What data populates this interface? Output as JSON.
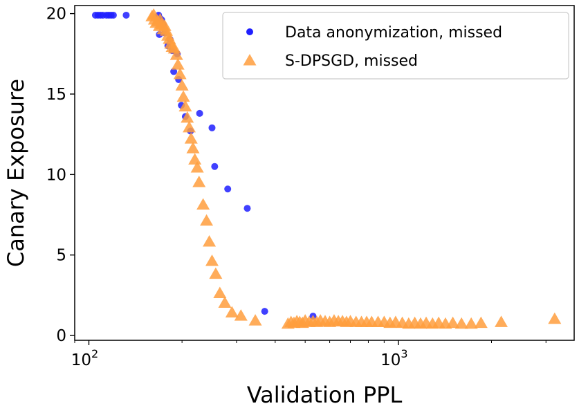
{
  "chart_data": {
    "type": "scatter",
    "title": "",
    "xlabel": "Validation PPL",
    "ylabel": "Canary Exposure",
    "xscale": "log",
    "xlim": [
      90,
      3700
    ],
    "ylim": [
      -0.3,
      20.5
    ],
    "xticks": [
      {
        "value": 100,
        "base": "10",
        "exp": "2"
      },
      {
        "value": 1000,
        "base": "10",
        "exp": "3"
      }
    ],
    "yticks": [
      0,
      5,
      10,
      15,
      20
    ],
    "grid": false,
    "legend_position": "top-right",
    "colors": {
      "anonymization": "#1f1fff",
      "dpsgd": "#ff9e3d"
    },
    "series": [
      {
        "name": "Data anonymization, missed",
        "marker": "circle",
        "color": "#1f1fff",
        "points": [
          [
            105,
            19.9
          ],
          [
            107,
            19.9
          ],
          [
            109,
            19.9
          ],
          [
            111,
            19.9
          ],
          [
            114,
            19.9
          ],
          [
            116,
            19.9
          ],
          [
            118,
            19.9
          ],
          [
            120,
            19.9
          ],
          [
            132,
            19.9
          ],
          [
            168,
            19.9
          ],
          [
            170,
            19.7
          ],
          [
            172,
            19.6
          ],
          [
            174,
            19.3
          ],
          [
            169,
            18.7
          ],
          [
            176,
            18.8
          ],
          [
            183,
            18.4
          ],
          [
            180,
            18.0
          ],
          [
            186,
            17.7
          ],
          [
            193,
            17.5
          ],
          [
            188,
            16.4
          ],
          [
            195,
            15.9
          ],
          [
            199,
            14.3
          ],
          [
            205,
            13.6
          ],
          [
            213,
            12.7
          ],
          [
            228,
            13.8
          ],
          [
            250,
            12.9
          ],
          [
            255,
            10.5
          ],
          [
            281,
            9.1
          ],
          [
            325,
            7.9
          ],
          [
            370,
            1.5
          ],
          [
            530,
            1.2
          ]
        ]
      },
      {
        "name": "S-DPSGD, missed",
        "marker": "triangle",
        "color": "#ff9e3d",
        "points": [
          [
            160,
            19.8
          ],
          [
            162,
            19.9
          ],
          [
            163,
            19.6
          ],
          [
            165,
            19.4
          ],
          [
            167,
            19.5
          ],
          [
            169,
            19.2
          ],
          [
            170,
            19.6
          ],
          [
            172,
            19.3
          ],
          [
            174,
            19.0
          ],
          [
            176,
            19.2
          ],
          [
            178,
            18.9
          ],
          [
            180,
            18.6
          ],
          [
            182,
            18.4
          ],
          [
            184,
            18.1
          ],
          [
            186,
            17.9
          ],
          [
            189,
            17.8
          ],
          [
            192,
            17.4
          ],
          [
            194,
            16.8
          ],
          [
            197,
            16.2
          ],
          [
            200,
            15.5
          ],
          [
            202,
            14.8
          ],
          [
            205,
            14.2
          ],
          [
            208,
            13.5
          ],
          [
            211,
            12.9
          ],
          [
            214,
            12.2
          ],
          [
            217,
            11.6
          ],
          [
            220,
            10.9
          ],
          [
            224,
            10.4
          ],
          [
            227,
            9.5
          ],
          [
            234,
            8.1
          ],
          [
            240,
            7.1
          ],
          [
            245,
            5.8
          ],
          [
            250,
            4.6
          ],
          [
            257,
            3.8
          ],
          [
            265,
            2.6
          ],
          [
            275,
            2.0
          ],
          [
            290,
            1.4
          ],
          [
            310,
            1.2
          ],
          [
            345,
            0.9
          ],
          [
            440,
            0.7
          ],
          [
            450,
            0.8
          ],
          [
            460,
            0.75
          ],
          [
            470,
            0.85
          ],
          [
            480,
            0.8
          ],
          [
            490,
            0.75
          ],
          [
            500,
            0.9
          ],
          [
            515,
            0.8
          ],
          [
            530,
            0.85
          ],
          [
            545,
            0.8
          ],
          [
            560,
            0.9
          ],
          [
            580,
            0.85
          ],
          [
            600,
            0.8
          ],
          [
            620,
            0.9
          ],
          [
            640,
            0.85
          ],
          [
            660,
            0.85
          ],
          [
            680,
            0.8
          ],
          [
            700,
            0.85
          ],
          [
            730,
            0.8
          ],
          [
            760,
            0.8
          ],
          [
            790,
            0.8
          ],
          [
            820,
            0.8
          ],
          [
            860,
            0.8
          ],
          [
            900,
            0.8
          ],
          [
            940,
            0.75
          ],
          [
            980,
            0.8
          ],
          [
            1030,
            0.75
          ],
          [
            1080,
            0.7
          ],
          [
            1130,
            0.75
          ],
          [
            1180,
            0.7
          ],
          [
            1230,
            0.75
          ],
          [
            1290,
            0.7
          ],
          [
            1350,
            0.75
          ],
          [
            1420,
            0.7
          ],
          [
            1500,
            0.75
          ],
          [
            1600,
            0.7
          ],
          [
            1720,
            0.7
          ],
          [
            1850,
            0.75
          ],
          [
            2150,
            0.8
          ],
          [
            3200,
            1.0
          ]
        ]
      }
    ]
  }
}
